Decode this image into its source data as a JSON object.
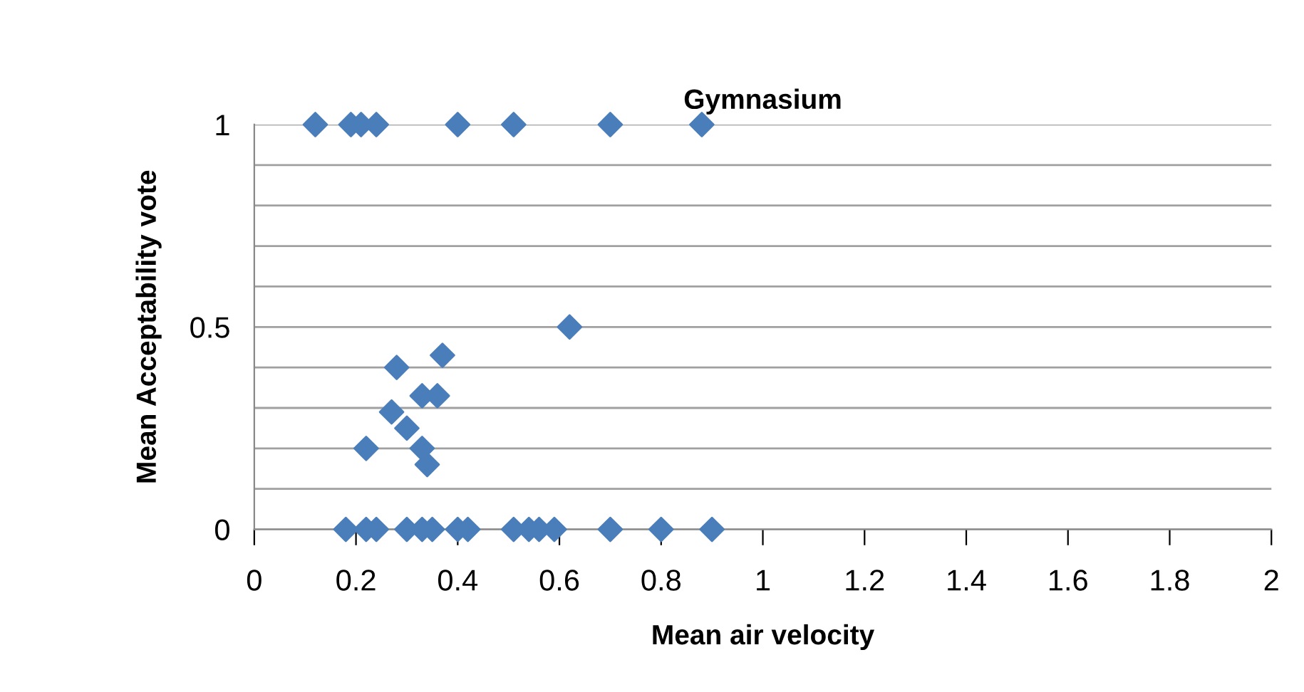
{
  "chart_data": {
    "type": "scatter",
    "title": "Gymnasium",
    "xlabel": "Mean air velocity",
    "ylabel": "Mean Acceptability vote",
    "x": [
      0.12,
      0.19,
      0.21,
      0.24,
      0.4,
      0.51,
      0.7,
      0.88,
      0.62,
      0.37,
      0.28,
      0.33,
      0.36,
      0.27,
      0.3,
      0.22,
      0.33,
      0.34,
      0.18,
      0.22,
      0.24,
      0.3,
      0.33,
      0.35,
      0.4,
      0.42,
      0.51,
      0.54,
      0.56,
      0.59,
      0.7,
      0.8,
      0.9
    ],
    "values": [
      1,
      1,
      1,
      1,
      1,
      1,
      1,
      1,
      0.5,
      0.43,
      0.4,
      0.33,
      0.33,
      0.29,
      0.25,
      0.2,
      0.2,
      0.16,
      0,
      0,
      0,
      0,
      0,
      0,
      0,
      0,
      0,
      0,
      0,
      0,
      0,
      0,
      0
    ],
    "color": "#4a7ebb",
    "marker": "diamond",
    "grid": "y",
    "legend": false,
    "xlim": [
      0,
      2
    ],
    "xticks": [
      0,
      0.2,
      0.4,
      0.6,
      0.8,
      1,
      1.2,
      1.4,
      1.6,
      1.8,
      2
    ],
    "ylim": [
      0,
      1
    ],
    "yticks": [
      0,
      {
        "value": 0.1,
        "label": null
      },
      {
        "value": 0.2,
        "label": null
      },
      {
        "value": 0.3,
        "label": null
      },
      {
        "value": 0.4,
        "label": null
      },
      0.5,
      {
        "value": 0.6,
        "label": null
      },
      {
        "value": 0.7,
        "label": null
      },
      {
        "value": 0.8,
        "label": null
      },
      {
        "value": 0.9,
        "label": null
      },
      1
    ]
  }
}
